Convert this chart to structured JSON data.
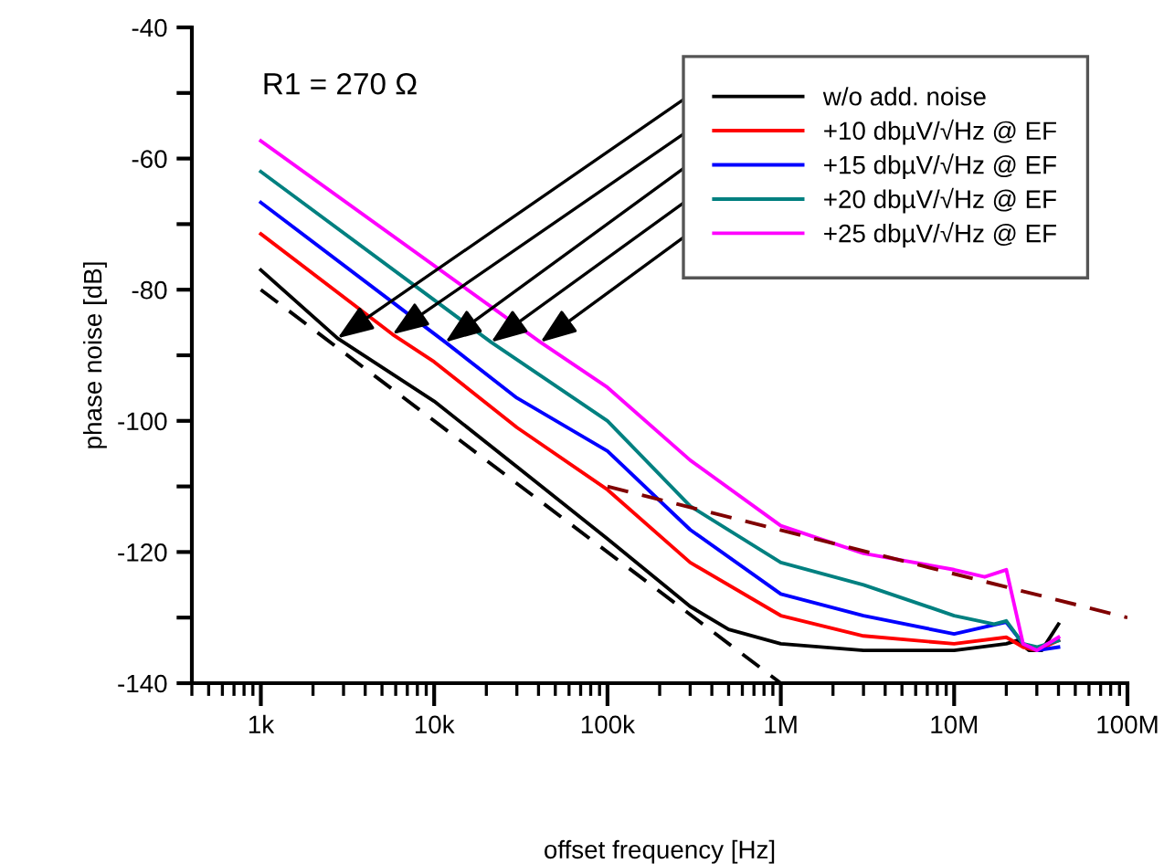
{
  "chart_data": {
    "type": "line",
    "xlabel": "offset frequency [Hz]",
    "ylabel": "phase noise [dB]",
    "annotations": [
      "R1 = 270 Ω"
    ],
    "log": "x",
    "xlim": [
      400,
      100000000
    ],
    "ylim": [
      -140,
      -40
    ],
    "xticks": [
      {
        "value": 1000,
        "label": "1k"
      },
      {
        "value": 10000,
        "label": "10k"
      },
      {
        "value": 100000,
        "label": "100k"
      },
      {
        "value": 1000000,
        "label": "1M"
      },
      {
        "value": 10000000,
        "label": "10M"
      },
      {
        "value": 100000000,
        "label": "100M"
      }
    ],
    "yticks": [
      -140,
      {
        "value": -130,
        "label": null
      },
      -120,
      {
        "value": -110,
        "label": null
      },
      -100,
      {
        "value": -90,
        "label": null
      },
      -80,
      {
        "value": -70,
        "label": null
      },
      -60,
      {
        "value": -50,
        "label": null
      },
      -40
    ],
    "grid": false,
    "legend": "top right",
    "series": [
      {
        "name": "w/o add. noise",
        "color": "#000000",
        "x": [
          1000,
          2770,
          10000,
          30000,
          100000,
          300000,
          500000,
          1000000,
          3000000,
          10000000,
          20000000,
          23000000,
          27000000,
          32000000,
          40000000
        ],
        "values": [
          -77,
          -87.4,
          -97,
          -107,
          -118,
          -128.3,
          -131.8,
          -134,
          -135,
          -135,
          -134,
          -133.5,
          -135,
          -135,
          -131
        ]
      },
      {
        "name": "+10 dbµV/√Hz @ EF",
        "color": "#ff0000",
        "x": [
          1000,
          5750,
          10000,
          30000,
          100000,
          300000,
          1000000,
          3000000,
          10000000,
          20000000,
          25000000,
          30000000,
          40000000
        ],
        "values": [
          -71.5,
          -86.8,
          -91,
          -101,
          -110.5,
          -121.6,
          -129.7,
          -132.8,
          -134,
          -133,
          -134.5,
          -135,
          -133.5
        ]
      },
      {
        "name": "+15 dbµV/√Hz @ EF",
        "color": "#0000ff",
        "x": [
          1000,
          11600,
          30000,
          100000,
          300000,
          1000000,
          3000000,
          10000000,
          20000000,
          25000000,
          30000000,
          40000000
        ],
        "values": [
          -66.7,
          -88,
          -96.5,
          -104.6,
          -116.6,
          -126.4,
          -129.7,
          -132.5,
          -130.7,
          -134,
          -135,
          -134.5
        ]
      },
      {
        "name": "+20 dbµV/√Hz @ EF",
        "color": "#008080",
        "x": [
          1000,
          21300,
          100000,
          300000,
          1000000,
          3000000,
          10000000,
          17000000,
          20000000,
          25000000,
          30000000,
          40000000
        ],
        "values": [
          -62,
          -88,
          -100,
          -113,
          -121.6,
          -125,
          -129.7,
          -131,
          -130.5,
          -134,
          -134.5,
          -133.5
        ]
      },
      {
        "name": "+25 dbµV/√Hz @ EF",
        "color": "#ff00ff",
        "x": [
          1000,
          41000,
          100000,
          300000,
          1000000,
          3000000,
          10000000,
          15000000,
          20000000,
          25000000,
          30000000,
          40000000
        ],
        "values": [
          -57.3,
          -88,
          -94.9,
          -106,
          -116,
          -120.2,
          -122.7,
          -123.8,
          -122.7,
          -134,
          -135,
          -133
        ]
      },
      {
        "color": "#000000",
        "line_style": "dashed",
        "x": [
          1000,
          1000000
        ],
        "values": [
          -80,
          -140
        ]
      },
      {
        "color": "#800000",
        "line_style": "dashed",
        "x": [
          100000,
          100000000
        ],
        "values": [
          -110,
          -130
        ]
      }
    ]
  }
}
